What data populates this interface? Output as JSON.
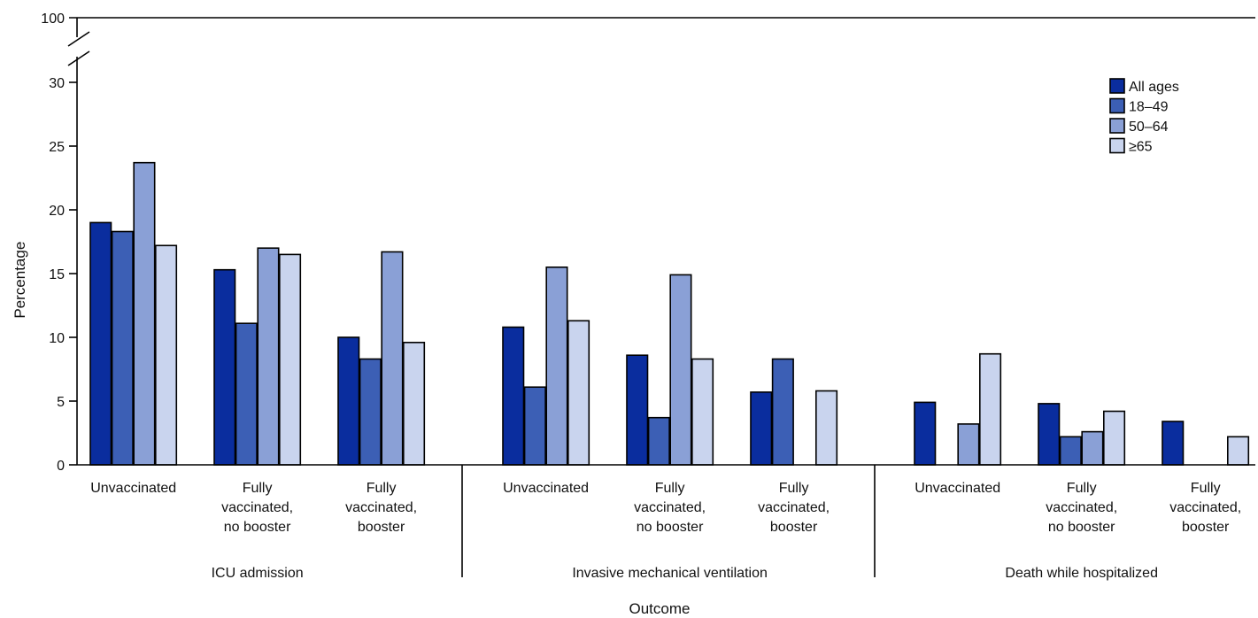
{
  "chart_data": {
    "type": "bar",
    "xlabel": "Outcome",
    "ylabel": "Percentage",
    "ylim": [
      0,
      30
    ],
    "y_break": true,
    "y_break_top_label": "100",
    "y_ticks": [
      0,
      5,
      10,
      15,
      20,
      25,
      30
    ],
    "grid": false,
    "legend_position": "top-right",
    "groups": [
      {
        "name": "ICU admission",
        "categories": [
          "Unvaccinated",
          "Fully vaccinated, no booster",
          "Fully vaccinated, booster"
        ]
      },
      {
        "name": "Invasive mechanical ventilation",
        "categories": [
          "Unvaccinated",
          "Fully vaccinated, no booster",
          "Fully vaccinated, booster"
        ]
      },
      {
        "name": "Death while hospitalized",
        "categories": [
          "Unvaccinated",
          "Fully vaccinated, no booster",
          "Fully vaccinated, booster"
        ]
      }
    ],
    "series": [
      {
        "name": "All ages",
        "color": "#0a2d9e",
        "values": [
          19.0,
          15.3,
          10.0,
          10.8,
          8.6,
          5.7,
          4.9,
          4.8,
          3.4
        ]
      },
      {
        "name": "18–49",
        "color": "#3c5fb5",
        "values": [
          18.3,
          11.1,
          8.3,
          6.1,
          3.7,
          8.3,
          null,
          2.2,
          null
        ]
      },
      {
        "name": "50–64",
        "color": "#8aa0d6",
        "values": [
          23.7,
          17.0,
          16.7,
          15.5,
          14.9,
          null,
          3.2,
          2.6,
          null
        ]
      },
      {
        "name": "≥65",
        "color": "#c9d4ee",
        "values": [
          17.2,
          16.5,
          9.6,
          11.3,
          8.3,
          5.8,
          8.7,
          4.2,
          2.2
        ]
      }
    ]
  }
}
